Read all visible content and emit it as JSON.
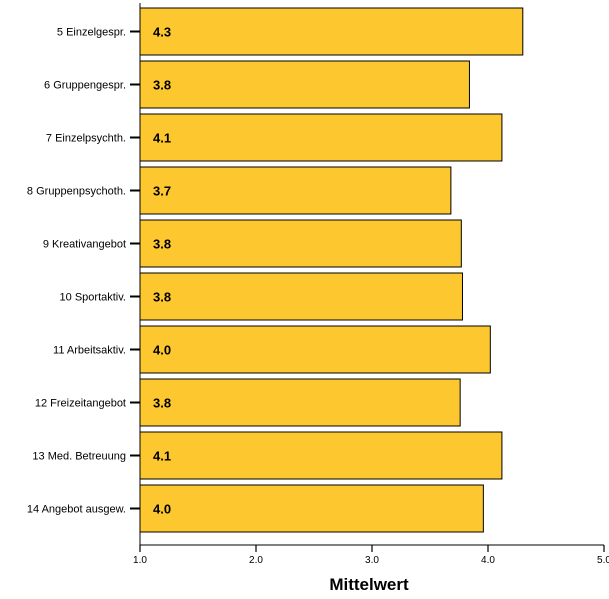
{
  "chart_data": {
    "type": "bar",
    "orientation": "horizontal",
    "categories": [
      "5 Einzelgespr.",
      "6 Gruppengespr.",
      "7 Einzelpsychth.",
      "8 Gruppenpsychoth.",
      "9 Kreativangebot",
      "10 Sportaktiv.",
      "11 Arbeitsaktiv.",
      "12 Freizeitangebot",
      "13 Med. Betreuung",
      "14 Angebot ausgew."
    ],
    "values": [
      4.3,
      3.84,
      4.12,
      3.68,
      3.77,
      3.78,
      4.02,
      3.76,
      4.12,
      3.96
    ],
    "data_labels": [
      "4.3",
      "3.8",
      "4.1",
      "3.7",
      "3.8",
      "3.8",
      "4.0",
      "3.8",
      "4.1",
      "4.0"
    ],
    "xlabel": "Mittelwert",
    "xlim": [
      1.0,
      5.0
    ],
    "ticks": [
      1.0,
      2.0,
      3.0,
      4.0,
      5.0
    ],
    "tick_labels": [
      "1.0",
      "2.0",
      "3.0",
      "4.0",
      "5.0"
    ],
    "grid": false,
    "legend": "none",
    "colors": {
      "bar_fill": "#fdc82f",
      "bar_stroke": "#000000",
      "axis": "#000000"
    }
  }
}
